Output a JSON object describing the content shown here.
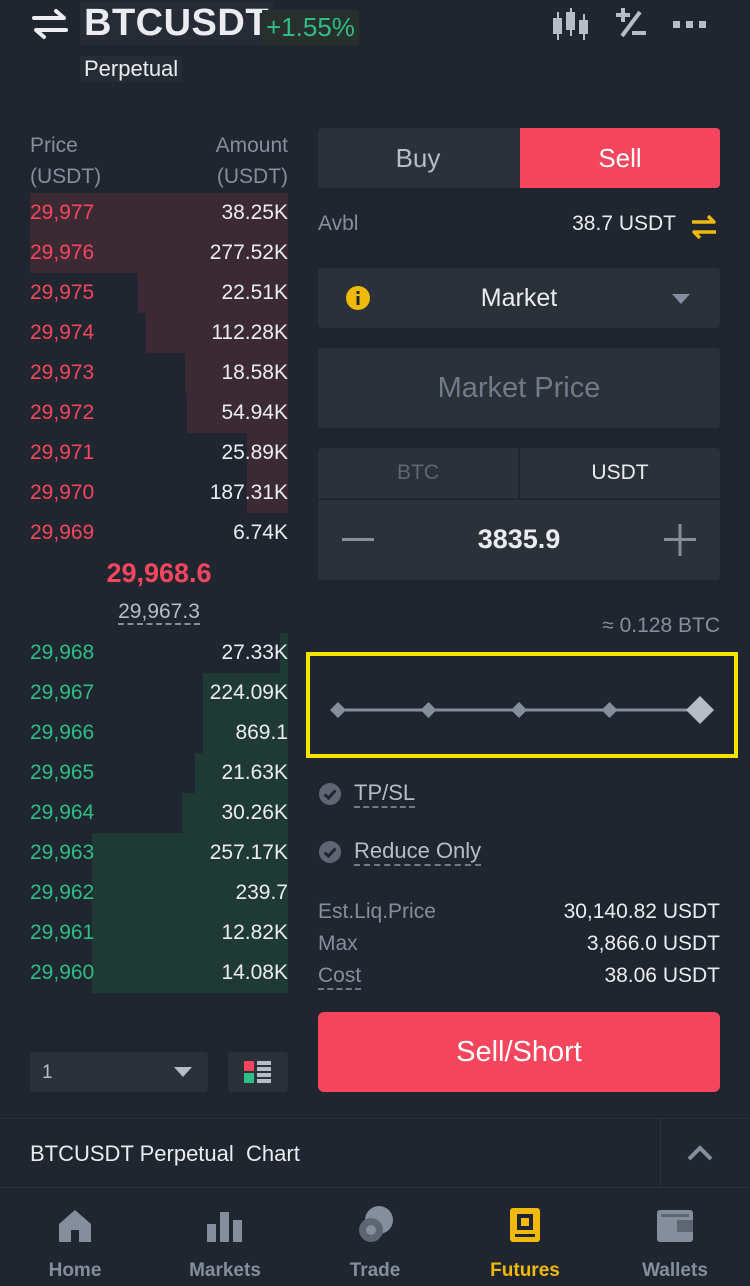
{
  "header": {
    "symbol": "BTCUSDT",
    "change": "+1.55%",
    "subtitle": "Perpetual",
    "icons": [
      "swap-arrows-icon",
      "candlestick-chart-icon",
      "plus-minus-icon",
      "more-dots-icon"
    ]
  },
  "orderbook": {
    "price_header": "Price",
    "price_unit": "(USDT)",
    "amount_header": "Amount",
    "amount_unit": "(USDT)",
    "asks": [
      {
        "price": "29,977",
        "amount": "38.25K",
        "depth": 1.0
      },
      {
        "price": "29,976",
        "amount": "277.52K",
        "depth": 1.0
      },
      {
        "price": "29,975",
        "amount": "22.51K",
        "depth": 0.58
      },
      {
        "price": "29,974",
        "amount": "112.28K",
        "depth": 0.55
      },
      {
        "price": "29,973",
        "amount": "18.58K",
        "depth": 0.4
      },
      {
        "price": "29,972",
        "amount": "54.94K",
        "depth": 0.39
      },
      {
        "price": "29,971",
        "amount": "25.89K",
        "depth": 0.16
      },
      {
        "price": "29,970",
        "amount": "187.31K",
        "depth": 0.16
      },
      {
        "price": "29,969",
        "amount": "6.74K",
        "depth": 0.0
      }
    ],
    "last_price": "29,968.6",
    "mark_price": "29,967.3",
    "bids": [
      {
        "price": "29,968",
        "amount": "27.33K",
        "depth": 0.03
      },
      {
        "price": "29,967",
        "amount": "224.09K",
        "depth": 0.33
      },
      {
        "price": "29,966",
        "amount": "869.1",
        "depth": 0.33
      },
      {
        "price": "29,965",
        "amount": "21.63K",
        "depth": 0.36
      },
      {
        "price": "29,964",
        "amount": "30.26K",
        "depth": 0.41
      },
      {
        "price": "29,963",
        "amount": "257.17K",
        "depth": 0.76
      },
      {
        "price": "29,962",
        "amount": "239.7",
        "depth": 0.76
      },
      {
        "price": "29,961",
        "amount": "12.82K",
        "depth": 0.76
      },
      {
        "price": "29,960",
        "amount": "14.08K",
        "depth": 0.76
      }
    ],
    "depth_value": "1"
  },
  "trade": {
    "buy_label": "Buy",
    "sell_label": "Sell",
    "avbl_label": "Avbl",
    "avbl_value": "38.7 USDT",
    "order_type": "Market",
    "price_placeholder": "Market Price",
    "unit_btc": "BTC",
    "unit_usdt": "USDT",
    "quantity": "3835.9",
    "approx": "≈ 0.128 BTC",
    "slider_level": 1.0,
    "tpsl_label": "TP/SL",
    "reduce_only_label": "Reduce Only",
    "est_liq_label": "Est.Liq.Price",
    "est_liq_value": "30,140.82 USDT",
    "max_label": "Max",
    "max_value": "3,866.0 USDT",
    "cost_label": "Cost",
    "cost_value": "38.06 USDT",
    "action_label": "Sell/Short"
  },
  "chart_bar": {
    "label": "BTCUSDT Perpetual  Chart"
  },
  "nav": {
    "items": [
      {
        "label": "Home",
        "icon": "home-icon"
      },
      {
        "label": "Markets",
        "icon": "markets-icon"
      },
      {
        "label": "Trade",
        "icon": "trade-icon"
      },
      {
        "label": "Futures",
        "icon": "futures-icon"
      },
      {
        "label": "Wallets",
        "icon": "wallet-icon"
      }
    ],
    "active": "Futures"
  },
  "colors": {
    "ask": "#f6465d",
    "bid": "#2ebd85",
    "accent": "#f0b90b",
    "highlight": "#f4e400"
  }
}
